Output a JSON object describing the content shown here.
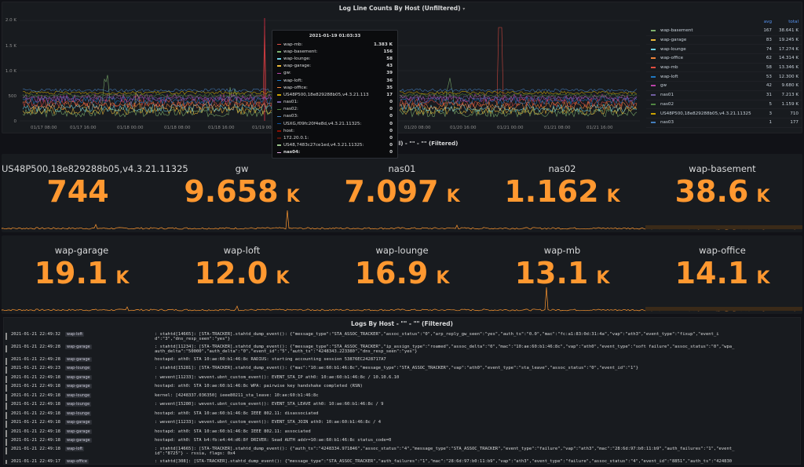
{
  "top_panel": {
    "title": "Log Line Counts By Host (Unfiltered)",
    "y_ticks": [
      "2.0 K",
      "1.5 K",
      "1.0 K",
      "500",
      "0"
    ],
    "x_ticks": [
      "01/17 08:00",
      "01/17 16:00",
      "01/18 00:00",
      "01/18 08:00",
      "01/18 16:00",
      "01/19 00:00",
      "01/20 08:00",
      "01/20 16:00",
      "01/21 00:00",
      "01/21 08:00",
      "01/21 16:00"
    ],
    "legend": {
      "avg_label": "avg",
      "total_label": "total",
      "items": [
        {
          "name": "wap-basement",
          "avg": "167",
          "total": "38.641 K",
          "color": "#7eb26d"
        },
        {
          "name": "wap-garage",
          "avg": "83",
          "total": "19.245 K",
          "color": "#eab839"
        },
        {
          "name": "wap-lounge",
          "avg": "74",
          "total": "17.274 K",
          "color": "#6ed0e0"
        },
        {
          "name": "wap-office",
          "avg": "62",
          "total": "14.314 K",
          "color": "#ef843c"
        },
        {
          "name": "wap-mb",
          "avg": "58",
          "total": "13.346 K",
          "color": "#e24d42"
        },
        {
          "name": "wap-loft",
          "avg": "53",
          "total": "12.300 K",
          "color": "#1f78c1"
        },
        {
          "name": "gw",
          "avg": "42",
          "total": "9.680 K",
          "color": "#ba43a9"
        },
        {
          "name": "nas01",
          "avg": "31",
          "total": "7.213 K",
          "color": "#705da0"
        },
        {
          "name": "nas02",
          "avg": "5",
          "total": "1.159 K",
          "color": "#508642"
        },
        {
          "name": "US48P500,18e829288b05,v4.3.21.11325",
          "avg": "3",
          "total": "710",
          "color": "#cca300"
        },
        {
          "name": "nas03",
          "avg": "1",
          "total": "177",
          "color": "#447ebc"
        }
      ]
    },
    "tooltip": {
      "time": "2021-01-19 01:03:33",
      "rows": [
        {
          "label": "wap-mb:",
          "value": "1.383 K",
          "color": "#e24d42"
        },
        {
          "label": "wap-basement:",
          "value": "156",
          "color": "#7eb26d"
        },
        {
          "label": "wap-lounge:",
          "value": "58",
          "color": "#6ed0e0"
        },
        {
          "label": "wap-garage:",
          "value": "43",
          "color": "#eab839"
        },
        {
          "label": "gw:",
          "value": "39",
          "color": "#ba43a9"
        },
        {
          "label": "wap-loft:",
          "value": "36",
          "color": "#1f78c1"
        },
        {
          "label": "wap-office:",
          "value": "35",
          "color": "#ef843c"
        },
        {
          "label": "US48P500,18e829288b05,v4.3.21.11325:",
          "value": "17",
          "color": "#cca300"
        },
        {
          "label": "nas01:",
          "value": "0",
          "color": "#705da0"
        },
        {
          "label": "nas02:",
          "value": "0",
          "color": "#508642"
        },
        {
          "label": "nas03:",
          "value": "0",
          "color": "#447ebc"
        },
        {
          "label": "USXG,f09fc20f4e8d,v4.3.21.11325:",
          "value": "0",
          "color": "#0a50a1"
        },
        {
          "label": "host:",
          "value": "0",
          "color": "#890f02"
        },
        {
          "label": "172.20.0.1:",
          "value": "0",
          "color": "#58140c"
        },
        {
          "label": "US48,7483c27ce1ed,v4.3.21.11325:",
          "value": "0",
          "color": "#9ac48a"
        },
        {
          "label": "nas04:",
          "value": "0",
          "color": "#e5a8e2",
          "bold": true
        }
      ]
    }
  },
  "middle_title_fragment": "All) - \"\" - \"\" (Filtered)",
  "stats_row1": [
    {
      "name": "US48P500,18e829288b05,v4.3.21.11325",
      "value": "744",
      "unit": ""
    },
    {
      "name": "gw",
      "value": "9.658",
      "unit": "K"
    },
    {
      "name": "nas01",
      "value": "7.097",
      "unit": "K"
    },
    {
      "name": "nas02",
      "value": "1.162",
      "unit": "K"
    },
    {
      "name": "wap-basement",
      "value": "38.6",
      "unit": "K"
    }
  ],
  "stats_row2": [
    {
      "name": "wap-garage",
      "value": "19.1",
      "unit": "K"
    },
    {
      "name": "wap-loft",
      "value": "12.0",
      "unit": "K"
    },
    {
      "name": "wap-lounge",
      "value": "16.9",
      "unit": "K"
    },
    {
      "name": "wap-mb",
      "value": "13.1",
      "unit": "K"
    },
    {
      "name": "wap-office",
      "value": "14.1",
      "unit": "K"
    }
  ],
  "logs": {
    "title": "Logs By Host - \"\" - \"\" (Filtered)",
    "rows": [
      {
        "ts": "2021-01-21 22:49:32",
        "host": "wap-loft",
        "msg": ": stahtd[14665]: [STA-TRACKER].stahtd_dump_event(): {\"message_type\":\"STA_ASSOC_TRACKER\",\"assoc_status\":\"0\",\"arp_reply_gw_seen\":\"yes\",\"auth_ts\":\"0.0\",\"mac\":\"fc:a1:83:0d:31:4a\",\"vap\":\"ath3\",\"event_type\":\"fixup\",\"event_i",
        "msg2": "d\":\"3\",\"dns_resp_seen\":\"yes\"}"
      },
      {
        "ts": "2021-01-21 22:49:28",
        "host": "wap-garage",
        "msg": ": stahtd[11234]: [STA-TRACKER].stahtd_dump_event(): {\"message_type\":\"STA_ASSOC_TRACKER\",\"ip_assign_type\":\"roamed\",\"assoc_delta\":\"0\",\"mac\":\"10:ae:60:b1:46:8c\",\"vap\":\"ath0\",\"event_type\":\"soft failure\",\"assoc_status\":\"0\",\"wpa_",
        "msg2": "auth_delta\":\"50000\",\"auth_delta\":\"0\",\"event_id\":\"5\",\"auth_ts\":\"4248343.223380\",\"dns_resp_seen\":\"yes\"}"
      },
      {
        "ts": "2021-01-21 22:49:28",
        "host": "wap-garage",
        "msg": "hostapd: ath0: STA 10:ae:60:b1:46:8c RADIUS: starting accounting session 53876EC2428717A7",
        "msg2": ""
      },
      {
        "ts": "2021-01-21 22:49:23",
        "host": "wap-lounge",
        "msg": ": stahtd[15281]: [STA-TRACKER].stahtd_dump_event(): {\"mac\":\"10:ae:60:b1:46:8c\",\"message_type\":\"STA_ASSOC_TRACKER\",\"vap\":\"ath0\",\"event_type\":\"sta_leave\",\"assoc_status\":\"0\",\"event_id\":\"1\"}",
        "msg2": ""
      },
      {
        "ts": "2021-01-21 22:49:18",
        "host": "wap-garage",
        "msg": ": wevent[11233]: wevent.ubnt_custom_event(): EVENT_STA_IP ath0: 10:ae:60:b1:46:8c / 10.10.6.10",
        "msg2": ""
      },
      {
        "ts": "2021-01-21 22:49:18",
        "host": "wap-garage",
        "msg": "hostapd: ath0: STA 10:ae:60:b1:46:8c WPA: pairwise key handshake completed (RSN)",
        "msg2": ""
      },
      {
        "ts": "2021-01-21 22:49:18",
        "host": "wap-lounge",
        "msg": "kernel: [4248337.036350] ieee80211_sta_leave: 10:ae:60:b1:46:8c",
        "msg2": ""
      },
      {
        "ts": "2021-01-21 22:49:18",
        "host": "wap-lounge",
        "msg": ": wevent[15280]: wevent.ubnt_custom_event(): EVENT_STA_LEAVE ath0: 10:ae:60:b1:46:8c / 9",
        "msg2": ""
      },
      {
        "ts": "2021-01-21 22:49:18",
        "host": "wap-lounge",
        "msg": "hostapd: ath0: STA 10:ae:60:b1:46:8c IEEE 802.11: disassociated",
        "msg2": ""
      },
      {
        "ts": "2021-01-21 22:49:18",
        "host": "wap-garage",
        "msg": ": wevent[11233]: wevent.ubnt_custom_event(): EVENT_STA_JOIN ath0: 10:ae:60:b1:46:8c / 4",
        "msg2": ""
      },
      {
        "ts": "2021-01-21 22:49:18",
        "host": "wap-garage",
        "msg": "hostapd: ath0: STA 10:ae:60:b1:46:8c IEEE 802.11: associated",
        "msg2": ""
      },
      {
        "ts": "2021-01-21 22:49:18",
        "host": "wap-garage",
        "msg": "hostapd: ath0: STA b4:fb:e4:44:d6:8f DRIVER: Sead AUTH addr=10:ae:60:b1:46:8c status_code=0",
        "msg2": ""
      },
      {
        "ts": "2021-01-21 22:49:18",
        "host": "wap-loft",
        "msg": ": stahtd[14665]: [STA-TRACKER].stahtd_dump_event(): {\"auth_ts\":\"4248334.971846\",\"assoc_status\":\"4\",\"message_type\":\"STA_ASSOC_TRACKER\",\"event_type\":\"failure\",\"vap\":\"ath3\",\"mac\":\"28:6d:97:b0:11:b9\",\"auth_failures\":\"1\",\"event_",
        "msg2": "id\":\"8725\"} - rssia, flags: 0x4"
      },
      {
        "ts": "2021-01-21 22:49:17",
        "host": "wap-office",
        "msg": ": stahtd[308]: [STA-TRACKER].stahtd_dump_event(): {\"message_type\":\"STA_ASSOC_TRACKER\",\"auth_failures\":\"1\",\"mac\":\"28:6d:97:b0:11:b9\",\"vap\":\"ath3\",\"event_type\":\"failure\",\"assoc_status\":\"4\",\"event_id\":\"8851\",\"auth_ts\":\"424830",
        "msg2": ""
      }
    ]
  }
}
